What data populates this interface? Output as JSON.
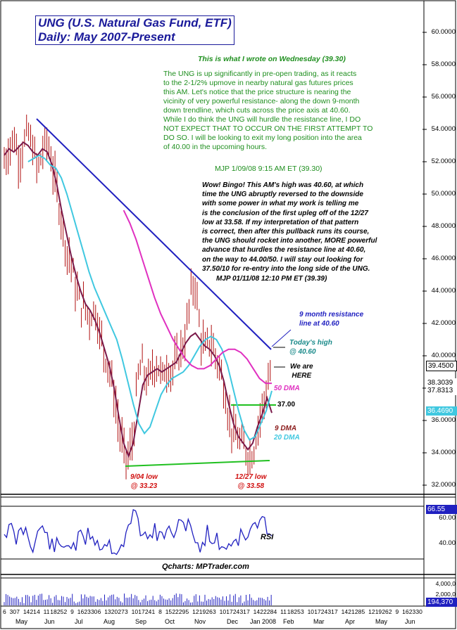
{
  "title": {
    "line1": "UNG (U.S. Natural Gas Fund, ETF)",
    "line2": "Daily: May 2007-Present"
  },
  "annotations": {
    "wednesday_header": "This is what I wrote on Wednesday (39.30)",
    "wednesday_body": [
      "The UNG is up significantly in pre-open trading, as it reacts",
      "to the 2-1/2% upmove in nearby natural gas futures prices",
      "this AM. Let's notice that the price structure is nearing the",
      "vicinity of very powerful resistance- along the down 9-month",
      "down trendline, which cuts across the price axis at 40.60.",
      "While I do think the UNG will hurdle the resistance line, I DO",
      "NOT EXPECT THAT TO OCCUR ON THE FIRST ATTEMPT TO",
      "DO SO. I will be looking to exit my long position into the area",
      "of 40.00 in the upcoming hours."
    ],
    "wednesday_sig": "MJP  1/09/08  9:15 AM ET (39.30)",
    "friday_body": [
      "Wow!  Bingo! This AM's high was 40.60, at which",
      "time the UNG abruptly reversed to the downside",
      "with some power in what my work is telling me",
      "is the conclusion of the first upleg off of the 12/27",
      "low at 33.58. If my interpretation of that pattern",
      "is correct, then after this pullback runs its course,",
      "the UNG should rocket into another, MORE powerful",
      "advance that hurdles the resistance line at 40.60,",
      "on the way to 44.00/50. I will stay out looking for",
      "37.50/10 for re-entry into the long side of the UNG."
    ],
    "friday_sig": "MJP  01/11/08  12:10 PM ET  (39.39)",
    "resistance_label": [
      "9 month resistance",
      "line at 40.60"
    ],
    "todays_high": [
      "Today's high",
      "@ 40.60"
    ],
    "we_are_here": [
      "We are",
      "HERE"
    ],
    "dma50": "50 DMA",
    "level_37": "37.00",
    "dma9": "9 DMA",
    "dma20": "20 DMA",
    "low_sep": [
      "9/04 low",
      "@ 33.23"
    ],
    "low_dec": [
      "12/27 low",
      "@ 33.58"
    ],
    "rsi_label": "RSI",
    "credit": "Qcharts: MPTrader.com"
  },
  "price_tags": {
    "last": "39.4500",
    "dma50": "38.3039",
    "dma20": "37.8313",
    "dma9": "36.4690",
    "rsi": "66.55",
    "volume": "194,370"
  },
  "colors": {
    "title": "#1a1a9a",
    "trendline": "#2020c0",
    "dma9": "#7a1a4a",
    "dma20": "#40c8e0",
    "dma50": "#e030c0",
    "support": "#20c020",
    "bars": "#b01010",
    "green_text": "#1f8f1f",
    "low_text": "#d01010"
  },
  "chart_data": {
    "type": "line",
    "title": "UNG (U.S. Natural Gas Fund, ETF) Daily: May 2007-Present",
    "y_ticks": [
      "60.0000",
      "58.0000",
      "56.0000",
      "54.0000",
      "52.0000",
      "50.0000",
      "48.0000",
      "46.0000",
      "44.0000",
      "42.0000",
      "40.0000",
      "38.0000",
      "36.0000",
      "34.0000",
      "32.0000"
    ],
    "ylim": [
      31.3,
      61.7
    ],
    "rsi_ticks": [
      "60.00",
      "40.00"
    ],
    "volume_ticks": [
      "4,000,0",
      "2,000,0"
    ],
    "x_day_labels": [
      "6",
      "30",
      "7",
      "14",
      "21",
      "4",
      "11",
      "18",
      "25",
      "2",
      "9",
      "16",
      "23",
      "30",
      "6",
      "13",
      "20",
      "27",
      "3",
      "10",
      "17",
      "24",
      "1",
      "8",
      "15",
      "22",
      "29",
      "5",
      "12",
      "19",
      "26",
      "3",
      "10",
      "17",
      "24",
      "31",
      "7",
      "14",
      "22",
      "28",
      "4",
      "11",
      "18",
      "25",
      "3",
      "10",
      "17",
      "24",
      "31",
      "7",
      "14",
      "21",
      "28",
      "5",
      "12",
      "19",
      "26",
      "2",
      "9",
      "16",
      "23",
      "30"
    ],
    "x_month_labels": [
      "May",
      "Jun",
      "Jul",
      "Aug",
      "Sep",
      "Oct",
      "Nov",
      "Dec",
      "Jan 2008",
      "Feb",
      "Mar",
      "Apr",
      "May",
      "Jun"
    ],
    "closes_points": [
      [
        0,
        52.0
      ],
      [
        4,
        52.8
      ],
      [
        8,
        53.6
      ],
      [
        12,
        52.2
      ],
      [
        16,
        53.0
      ],
      [
        20,
        53.8
      ],
      [
        24,
        52.8
      ],
      [
        28,
        51.4
      ],
      [
        32,
        52.6
      ],
      [
        36,
        53.4
      ],
      [
        40,
        51.8
      ],
      [
        44,
        50.2
      ],
      [
        48,
        48.4
      ],
      [
        52,
        46.6
      ],
      [
        56,
        45.8
      ],
      [
        60,
        44.0
      ],
      [
        64,
        43.2
      ],
      [
        68,
        42.8
      ],
      [
        72,
        42.4
      ],
      [
        76,
        43.0
      ],
      [
        80,
        41.4
      ],
      [
        84,
        40.2
      ],
      [
        88,
        39.2
      ],
      [
        92,
        37.6
      ],
      [
        96,
        35.6
      ],
      [
        100,
        34.0
      ],
      [
        104,
        33.6
      ],
      [
        108,
        35.0
      ],
      [
        112,
        38.8
      ],
      [
        116,
        39.4
      ],
      [
        120,
        38.2
      ],
      [
        124,
        39.2
      ],
      [
        128,
        39.6
      ],
      [
        132,
        38.6
      ],
      [
        136,
        39.4
      ],
      [
        140,
        39.0
      ],
      [
        144,
        39.6
      ],
      [
        148,
        40.4
      ],
      [
        152,
        41.2
      ],
      [
        156,
        43.8
      ],
      [
        160,
        44.6
      ],
      [
        164,
        41.4
      ],
      [
        168,
        40.2
      ],
      [
        172,
        41.0
      ],
      [
        176,
        40.2
      ],
      [
        180,
        39.4
      ],
      [
        184,
        38.0
      ],
      [
        188,
        36.2
      ],
      [
        192,
        35.2
      ],
      [
        196,
        34.8
      ],
      [
        200,
        34.4
      ],
      [
        204,
        34.0
      ],
      [
        208,
        33.9
      ],
      [
        212,
        35.6
      ],
      [
        216,
        36.8
      ],
      [
        220,
        38.0
      ],
      [
        224,
        39.45
      ]
    ],
    "series": [
      {
        "name": "9 DMA",
        "x_start": 0,
        "values": [
          52.4,
          52.8,
          52.6,
          52.9,
          53.2,
          53.0,
          52.6,
          52.4,
          52.8,
          52.6,
          51.8,
          50.6,
          49.0,
          47.6,
          46.2,
          45.0,
          44.0,
          43.2,
          42.8,
          42.2,
          41.4,
          40.4,
          39.4,
          38.0,
          36.2,
          34.6,
          33.8,
          34.6,
          36.4,
          38.2,
          38.8,
          39.0,
          39.2,
          39.0,
          39.2,
          39.4,
          39.6,
          40.2,
          40.8,
          41.2,
          41.4,
          41.0,
          40.6,
          40.4,
          40.0,
          39.4,
          38.4,
          37.0,
          35.8,
          35.0,
          34.6,
          34.2,
          34.6,
          35.6,
          36.4,
          37.4,
          36.47
        ]
      },
      {
        "name": "20 DMA",
        "x_start": 6,
        "values": [
          52.0,
          52.2,
          52.4,
          52.2,
          51.8,
          51.6,
          51.0,
          50.0,
          48.8,
          47.6,
          46.4,
          45.2,
          44.2,
          43.4,
          42.6,
          41.8,
          41.0,
          39.8,
          38.4,
          37.0,
          35.8,
          35.2,
          35.6,
          36.6,
          37.6,
          38.2,
          38.6,
          38.8,
          39.0,
          39.4,
          40.0,
          40.6,
          41.0,
          41.2,
          41.0,
          40.4,
          39.4,
          38.0,
          36.6,
          35.4,
          34.8,
          35.0,
          35.8,
          36.6,
          37.83
        ]
      },
      {
        "name": "50 DMA",
        "x_start": 24,
        "values": [
          49.0,
          48.2,
          47.2,
          46.0,
          44.8,
          43.6,
          42.6,
          41.8,
          41.0,
          40.4,
          39.8,
          39.4,
          39.2,
          39.2,
          39.4,
          39.8,
          40.2,
          40.4,
          40.4,
          40.2,
          39.8,
          39.2,
          38.6,
          38.3,
          38.3
        ]
      }
    ]
  }
}
